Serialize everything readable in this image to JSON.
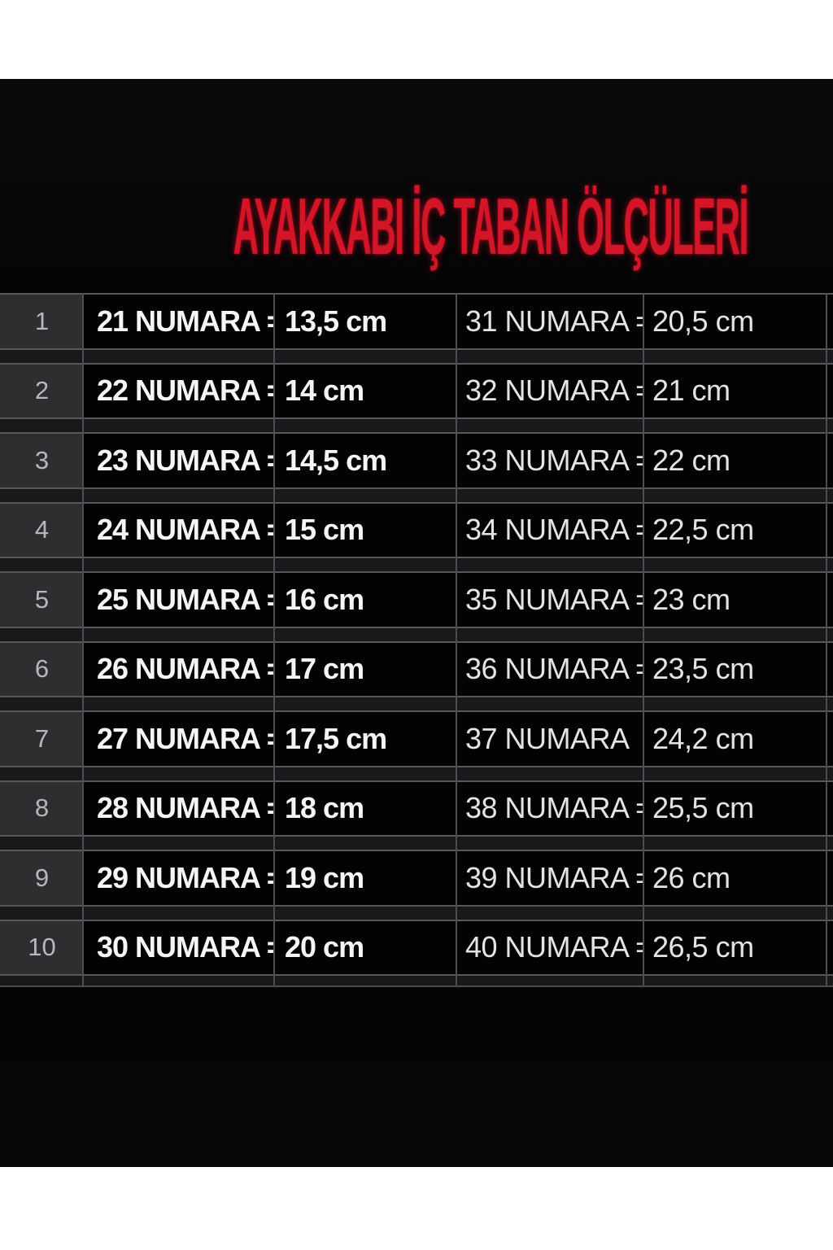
{
  "title": "AYAKKABI İÇ TABAN ÖLÇÜLERİ",
  "unit": "cm",
  "table": {
    "rows": [
      {
        "index": "1",
        "left_label": "21 NUMARA =",
        "left_value": "13,5 cm",
        "right_label": "31 NUMARA =",
        "right_value": "20,5 cm"
      },
      {
        "index": "2",
        "left_label": "22 NUMARA =",
        "left_value": "14 cm",
        "right_label": "32 NUMARA =",
        "right_value": "21 cm"
      },
      {
        "index": "3",
        "left_label": "23 NUMARA =",
        "left_value": "14,5 cm",
        "right_label": "33 NUMARA =",
        "right_value": "22 cm"
      },
      {
        "index": "4",
        "left_label": "24 NUMARA =",
        "left_value": "15 cm",
        "right_label": "34 NUMARA =",
        "right_value": "22,5 cm"
      },
      {
        "index": "5",
        "left_label": "25 NUMARA =",
        "left_value": "16 cm",
        "right_label": "35 NUMARA =",
        "right_value": "23 cm"
      },
      {
        "index": "6",
        "left_label": "26 NUMARA =",
        "left_value": "17 cm",
        "right_label": "36 NUMARA =",
        "right_value": "23,5 cm"
      },
      {
        "index": "7",
        "left_label": "27 NUMARA =",
        "left_value": "17,5 cm",
        "right_label": "37 NUMARA",
        "right_value": "24,2 cm"
      },
      {
        "index": "8",
        "left_label": "28 NUMARA =",
        "left_value": "18 cm",
        "right_label": "38 NUMARA =",
        "right_value": "25,5 cm"
      },
      {
        "index": "9",
        "left_label": "29 NUMARA =",
        "left_value": "19 cm",
        "right_label": "39 NUMARA =",
        "right_value": "26 cm"
      },
      {
        "index": "10",
        "left_label": "30 NUMARA =",
        "left_value": "20 cm",
        "right_label": "40 NUMARA =",
        "right_value": "26,5 cm"
      }
    ]
  },
  "chart_data": {
    "type": "table",
    "title": "AYAKKABI İÇ TABAN ÖLÇÜLERİ",
    "unit": "cm",
    "rows": [
      [
        1,
        21,
        13.5,
        31,
        20.5
      ],
      [
        2,
        22,
        14,
        32,
        21
      ],
      [
        3,
        23,
        14.5,
        33,
        22
      ],
      [
        4,
        24,
        15,
        34,
        22.5
      ],
      [
        5,
        25,
        16,
        35,
        23
      ],
      [
        6,
        26,
        17,
        36,
        23.5
      ],
      [
        7,
        27,
        17.5,
        37,
        24.2
      ],
      [
        8,
        28,
        18,
        38,
        25.5
      ],
      [
        9,
        29,
        19,
        39,
        26
      ],
      [
        10,
        30,
        20,
        40,
        26.5
      ]
    ]
  },
  "colors": {
    "title_red": "#d21527",
    "photo_black": "#050506",
    "cell_black": "#030303",
    "index_gray": "#2e2e31",
    "grid_line": "#55555a",
    "text_white": "#f5f5f5",
    "band_white": "#ffffff"
  }
}
